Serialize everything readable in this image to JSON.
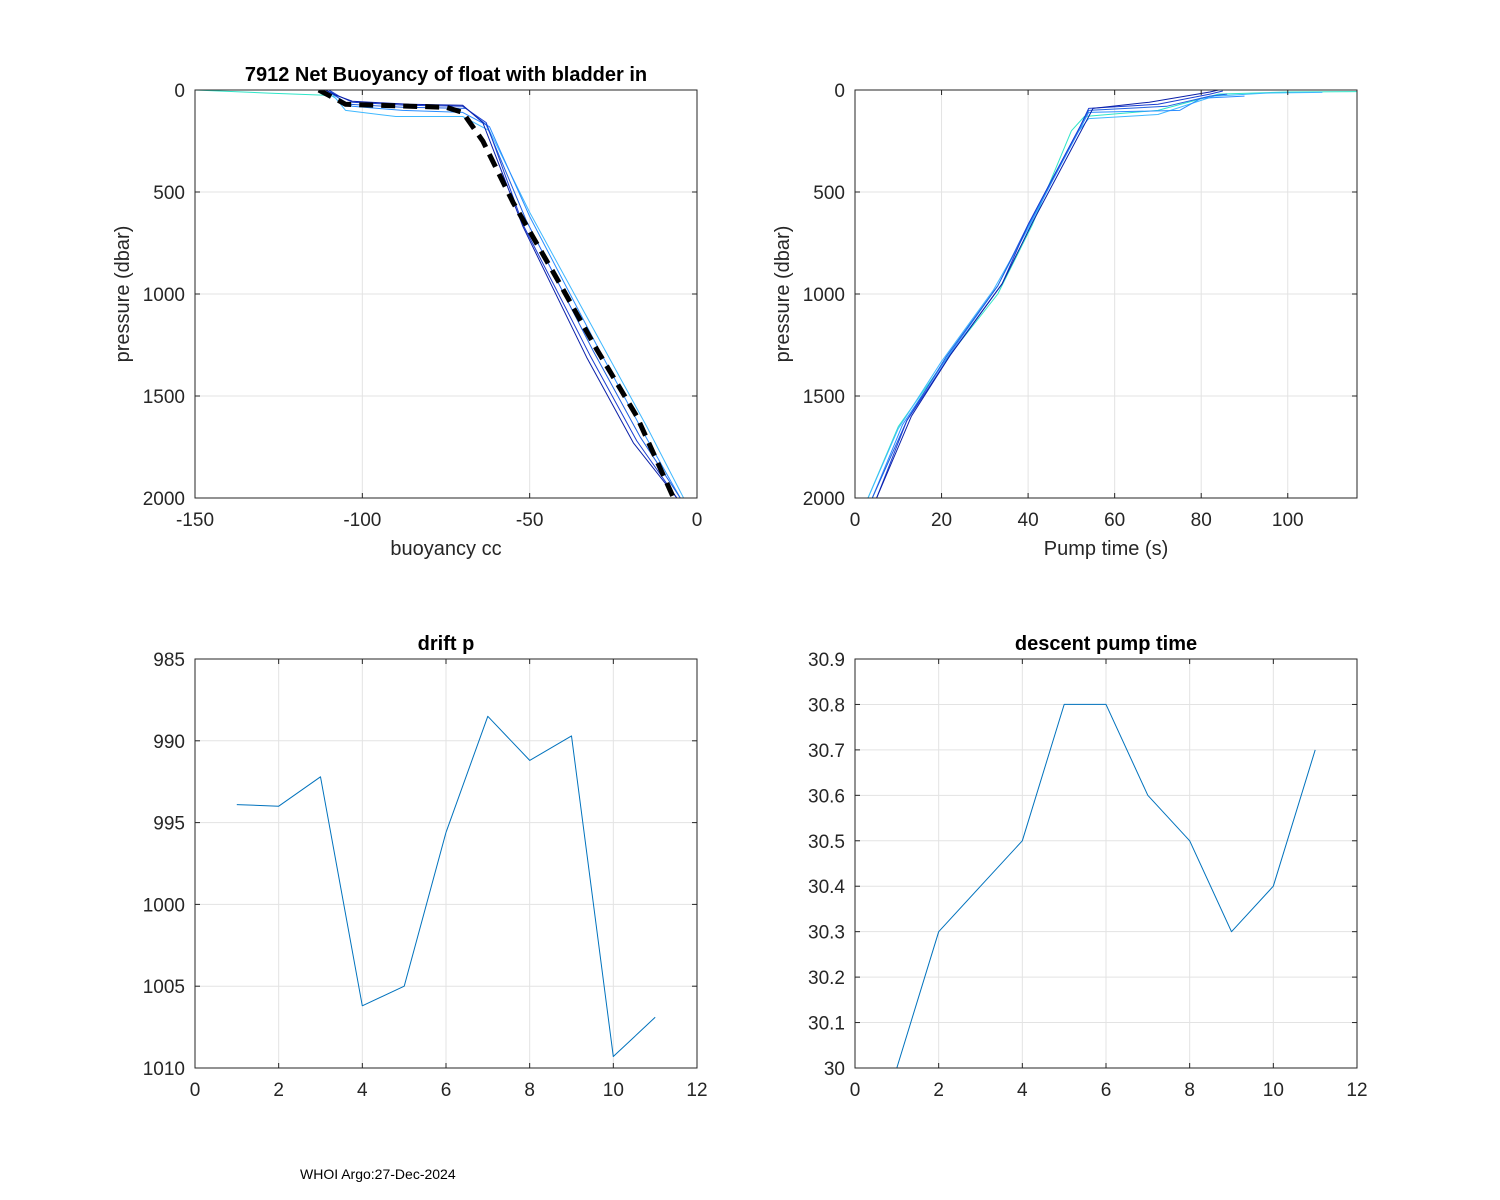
{
  "footer": "WHOI Argo:27-Dec-2024",
  "chart_data": [
    {
      "type": "line",
      "title": "7912 Net Buoyancy of float with bladder in",
      "xlabel": "buoyancy cc",
      "ylabel": "pressure (dbar)",
      "xlim": [
        -150,
        0
      ],
      "ylim": [
        0,
        2000
      ],
      "y_reversed": true,
      "grid": true,
      "xticks": [
        -150,
        -100,
        -50,
        0
      ],
      "yticks": [
        0,
        500,
        1000,
        1500,
        2000
      ],
      "series": [
        {
          "color": "#2ee6c8",
          "x": [
            -150,
            -128,
            -112,
            -110,
            -108
          ],
          "y": [
            0,
            15,
            25,
            28,
            30
          ]
        },
        {
          "color": "#3fb8ff",
          "x": [
            -112,
            -108,
            -105,
            -90,
            -70,
            -62,
            -50,
            -30,
            -15,
            -4
          ],
          "y": [
            0,
            40,
            100,
            130,
            130,
            200,
            600,
            1200,
            1650,
            2000
          ]
        },
        {
          "color": "#2a8cff",
          "x": [
            -110,
            -107,
            -103,
            -88,
            -70,
            -62,
            -50,
            -30,
            -16,
            -5
          ],
          "y": [
            0,
            40,
            80,
            100,
            110,
            180,
            620,
            1250,
            1680,
            2000
          ]
        },
        {
          "color": "#1f5fe0",
          "x": [
            -111,
            -108,
            -104,
            -88,
            -69,
            -63,
            -51,
            -31,
            -17,
            -5
          ],
          "y": [
            0,
            30,
            70,
            85,
            90,
            170,
            640,
            1280,
            1700,
            2000
          ]
        },
        {
          "color": "#1a3dd0",
          "x": [
            -110,
            -107,
            -103,
            -87,
            -70,
            -63,
            -52,
            -32,
            -18,
            -6
          ],
          "y": [
            0,
            30,
            60,
            75,
            80,
            160,
            660,
            1300,
            1720,
            2000
          ]
        },
        {
          "color": "#0a1fa8",
          "x": [
            -111,
            -108,
            -103,
            -86,
            -70,
            -64,
            -52,
            -33,
            -19,
            -6
          ],
          "y": [
            0,
            25,
            55,
            70,
            75,
            160,
            670,
            1310,
            1730,
            2000
          ]
        },
        {
          "color": "#000000",
          "dashed": true,
          "x": [
            -113,
            -105,
            -75,
            -70,
            -64,
            -55,
            -42,
            -30,
            -18,
            -7
          ],
          "y": [
            0,
            70,
            85,
            110,
            250,
            550,
            920,
            1270,
            1600,
            2000
          ]
        }
      ]
    },
    {
      "type": "line",
      "xlabel": "Pump time (s)",
      "ylabel": "pressure (dbar)",
      "xlim": [
        0,
        116
      ],
      "ylim": [
        0,
        2000
      ],
      "y_reversed": true,
      "grid": true,
      "xticks": [
        0,
        20,
        40,
        60,
        80,
        100
      ],
      "yticks": [
        0,
        500,
        1000,
        1500,
        2000
      ],
      "series": [
        {
          "color": "#2ee6c8",
          "x": [
            3,
            10,
            20,
            33,
            41,
            50,
            53,
            70,
            84,
            100,
            116
          ],
          "y": [
            2000,
            1650,
            1350,
            1000,
            660,
            200,
            130,
            100,
            20,
            10,
            8
          ]
        },
        {
          "color": "#3fb8ff",
          "x": [
            3,
            10,
            20,
            32,
            40,
            51,
            54,
            70,
            83,
            95,
            108
          ],
          "y": [
            2000,
            1660,
            1330,
            980,
            680,
            220,
            140,
            120,
            30,
            15,
            12
          ]
        },
        {
          "color": "#2a8cff",
          "x": [
            4,
            11,
            21,
            33,
            40,
            52,
            54,
            75,
            80,
            90
          ],
          "y": [
            2000,
            1640,
            1320,
            960,
            670,
            190,
            110,
            100,
            40,
            30
          ]
        },
        {
          "color": "#1f5fe0",
          "x": [
            4,
            12,
            21,
            33,
            40,
            52,
            54,
            72,
            82,
            86
          ],
          "y": [
            2000,
            1620,
            1310,
            960,
            660,
            180,
            100,
            80,
            30,
            20
          ]
        },
        {
          "color": "#1a3dd0",
          "x": [
            5,
            12,
            22,
            34,
            40,
            52,
            54,
            70,
            82,
            85
          ],
          "y": [
            2000,
            1620,
            1300,
            950,
            660,
            180,
            90,
            70,
            20,
            5
          ]
        },
        {
          "color": "#0a1fa8",
          "x": [
            5,
            13,
            22,
            34,
            41,
            53,
            55,
            68,
            82,
            84
          ],
          "y": [
            2000,
            1600,
            1300,
            950,
            650,
            170,
            90,
            60,
            10,
            0
          ]
        }
      ]
    },
    {
      "type": "line",
      "title": "drift p",
      "xlim": [
        0,
        12
      ],
      "ylim": [
        985,
        1010
      ],
      "y_reversed": true,
      "grid": true,
      "xticks": [
        0,
        2,
        4,
        6,
        8,
        10,
        12
      ],
      "yticks": [
        985,
        990,
        995,
        1000,
        1005,
        1010
      ],
      "series": [
        {
          "color": "#0072bd",
          "x": [
            1,
            2,
            3,
            4,
            5,
            6,
            7,
            8,
            9,
            10,
            11
          ],
          "y": [
            993.9,
            994.0,
            992.2,
            1006.2,
            1005.0,
            995.6,
            988.5,
            991.2,
            989.7,
            1009.3,
            1006.9
          ]
        }
      ]
    },
    {
      "type": "line",
      "title": "descent pump time",
      "xlim": [
        0,
        12
      ],
      "ylim": [
        30,
        30.9
      ],
      "grid": true,
      "xticks": [
        0,
        2,
        4,
        6,
        8,
        10,
        12
      ],
      "yticks": [
        30,
        30.1,
        30.2,
        30.3,
        30.4,
        30.5,
        30.6,
        30.7,
        30.8,
        30.9
      ],
      "series": [
        {
          "color": "#0072bd",
          "x": [
            1,
            2,
            3,
            4,
            5,
            6,
            7,
            8,
            9,
            10,
            11
          ],
          "y": [
            30.0,
            30.3,
            30.4,
            30.5,
            30.8,
            30.8,
            30.6,
            30.5,
            30.3,
            30.4,
            30.7
          ]
        }
      ]
    }
  ]
}
